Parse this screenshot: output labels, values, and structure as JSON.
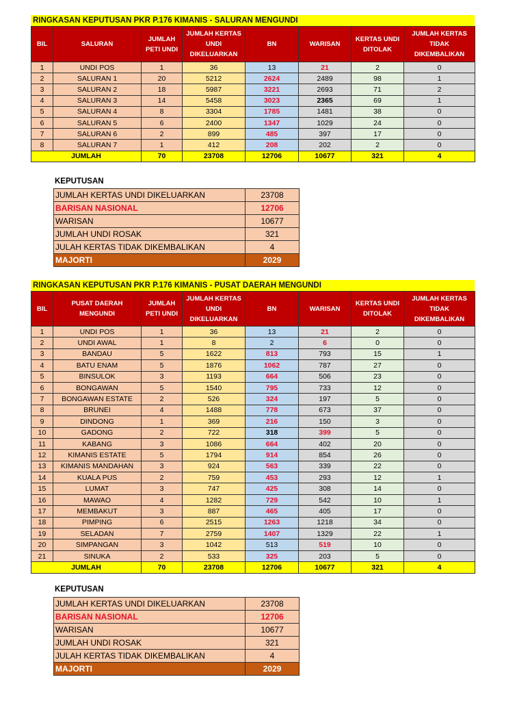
{
  "colors": {
    "header": "#c00000",
    "title": "#ffff00",
    "red_text": "#e3102a",
    "majority": "#c55a11"
  },
  "headers1": [
    "BIL",
    "SALURAN",
    "JUMLAH PETI UNDI",
    "JUMLAH KERTAS UNDI DIKELUARKAN",
    "BN",
    "WARISAN",
    "KERTAS UNDI DITOLAK",
    "JUMLAH KERTAS TIDAK DIKEMBALIKAN"
  ],
  "headers2": [
    "BIL",
    "PUSAT DAERAH MENGUNDI",
    "JUMLAH PETI UNDI",
    "JUMLAH KERTAS UNDI DIKELUARKAN",
    "BN",
    "WARISAN",
    "KERTAS UNDI DITOLAK",
    "JUMLAH KERTAS TIDAK DIKEMBALIKAN"
  ],
  "table1": {
    "title": "RINGKASAN KEPUTUSAN PKR P.176 KIMANIS - SALURAN MENGUNDI",
    "rows": [
      {
        "cells": [
          "1",
          "UNDI POS",
          "1",
          "36",
          "13",
          "21",
          "2",
          "0"
        ],
        "style": {
          "5": "r"
        }
      },
      {
        "cells": [
          "2",
          "SALURAN 1",
          "20",
          "5212",
          "2624",
          "2489",
          "98",
          "1"
        ],
        "style": {
          "4": "r"
        }
      },
      {
        "cells": [
          "3",
          "SALURAN 2",
          "18",
          "5987",
          "3221",
          "2693",
          "71",
          "2"
        ],
        "style": {
          "4": "r"
        }
      },
      {
        "cells": [
          "4",
          "SALURAN 3",
          "14",
          "5458",
          "3023",
          "2365",
          "69",
          "1"
        ],
        "style": {
          "4": "r",
          "5": "b"
        }
      },
      {
        "cells": [
          "5",
          "SALURAN 4",
          "8",
          "3304",
          "1785",
          "1481",
          "38",
          "0"
        ],
        "style": {
          "4": "r"
        }
      },
      {
        "cells": [
          "6",
          "SALURAN 5",
          "6",
          "2400",
          "1347",
          "1029",
          "24",
          "0"
        ],
        "style": {
          "4": "r"
        }
      },
      {
        "cells": [
          "7",
          "SALURAN 6",
          "2",
          "899",
          "485",
          "397",
          "17",
          "0"
        ],
        "style": {
          "4": "r"
        }
      },
      {
        "cells": [
          "8",
          "SALURAN 7",
          "1",
          "412",
          "208",
          "202",
          "2",
          "0"
        ],
        "style": {
          "4": "r"
        }
      }
    ],
    "total": [
      "JUMLAH",
      "70",
      "23708",
      "12706",
      "10677",
      "321",
      "4"
    ]
  },
  "table2": {
    "title": "RINGKASAN KEPUTUSAN PKR P.176 KIMANIS - PUSAT DAERAH MENGUNDI",
    "rows": [
      {
        "cells": [
          "1",
          "UNDI POS",
          "1",
          "36",
          "13",
          "21",
          "2",
          "0"
        ],
        "style": {
          "5": "r"
        }
      },
      {
        "cells": [
          "2",
          "UNDI AWAL",
          "1",
          "8",
          "2",
          "6",
          "0",
          "0"
        ],
        "style": {
          "5": "r"
        }
      },
      {
        "cells": [
          "3",
          "BANDAU",
          "5",
          "1622",
          "813",
          "793",
          "15",
          "1"
        ],
        "style": {
          "4": "r"
        }
      },
      {
        "cells": [
          "4",
          "BATU ENAM",
          "5",
          "1876",
          "1062",
          "787",
          "27",
          "0"
        ],
        "style": {
          "4": "r"
        }
      },
      {
        "cells": [
          "5",
          "BINSULOK",
          "3",
          "1193",
          "664",
          "506",
          "23",
          "0"
        ],
        "style": {
          "4": "r"
        }
      },
      {
        "cells": [
          "6",
          "BONGAWAN",
          "5",
          "1540",
          "795",
          "733",
          "12",
          "0"
        ],
        "style": {
          "4": "r"
        }
      },
      {
        "cells": [
          "7",
          "BONGAWAN ESTATE",
          "2",
          "526",
          "324",
          "197",
          "5",
          "0"
        ],
        "style": {
          "4": "r"
        }
      },
      {
        "cells": [
          "8",
          "BRUNEI",
          "4",
          "1488",
          "778",
          "673",
          "37",
          "0"
        ],
        "style": {
          "4": "r"
        }
      },
      {
        "cells": [
          "9",
          "DINDONG",
          "1",
          "369",
          "216",
          "150",
          "3",
          "0"
        ],
        "style": {
          "4": "r"
        }
      },
      {
        "cells": [
          "10",
          "GADONG",
          "2",
          "722",
          "318",
          "399",
          "5",
          "0"
        ],
        "style": {
          "4": "b",
          "5": "r"
        }
      },
      {
        "cells": [
          "11",
          "KABANG",
          "3",
          "1086",
          "664",
          "402",
          "20",
          "0"
        ],
        "style": {
          "4": "r"
        }
      },
      {
        "cells": [
          "12",
          "KIMANIS ESTATE",
          "5",
          "1794",
          "914",
          "854",
          "26",
          "0"
        ],
        "style": {
          "4": "r"
        }
      },
      {
        "cells": [
          "13",
          "KIMANIS MANDAHAN",
          "3",
          "924",
          "563",
          "339",
          "22",
          "0"
        ],
        "style": {
          "4": "r"
        }
      },
      {
        "cells": [
          "14",
          "KUALA PUS",
          "2",
          "759",
          "453",
          "293",
          "12",
          "1"
        ],
        "style": {
          "4": "r"
        }
      },
      {
        "cells": [
          "15",
          "LUMAT",
          "3",
          "747",
          "425",
          "308",
          "14",
          "0"
        ],
        "style": {
          "4": "r"
        }
      },
      {
        "cells": [
          "16",
          "MAWAO",
          "4",
          "1282",
          "729",
          "542",
          "10",
          "1"
        ],
        "style": {
          "4": "r"
        }
      },
      {
        "cells": [
          "17",
          "MEMBAKUT",
          "3",
          "887",
          "465",
          "405",
          "17",
          "0"
        ],
        "style": {
          "4": "r"
        }
      },
      {
        "cells": [
          "18",
          "PIMPING",
          "6",
          "2515",
          "1263",
          "1218",
          "34",
          "0"
        ],
        "style": {
          "4": "r"
        }
      },
      {
        "cells": [
          "19",
          "SELADAN",
          "7",
          "2759",
          "1407",
          "1329",
          "22",
          "1"
        ],
        "style": {
          "4": "r"
        }
      },
      {
        "cells": [
          "20",
          "SIMPANGAN",
          "3",
          "1042",
          "513",
          "519",
          "10",
          "0"
        ],
        "style": {
          "5": "r"
        }
      },
      {
        "cells": [
          "21",
          "SINUKA",
          "2",
          "533",
          "325",
          "203",
          "5",
          "0"
        ],
        "style": {
          "4": "r"
        }
      }
    ],
    "total": [
      "JUMLAH",
      "70",
      "23708",
      "12706",
      "10677",
      "321",
      "4"
    ]
  },
  "keputusan": {
    "title": "KEPUTUSAN",
    "rows": [
      {
        "label": "JUMLAH KERTAS UNDI DIKELUARKAN",
        "value": "23708"
      },
      {
        "label": "BARISAN NASIONAL",
        "value": "12706",
        "kind": "red"
      },
      {
        "label": "WARISAN",
        "value": "10677"
      },
      {
        "label": "JUMLAH UNDI ROSAK",
        "value": "321"
      },
      {
        "label": "JULAH KERTAS TIDAK DIKEMBALIKAN",
        "value": "4"
      },
      {
        "label": "MAJORTI",
        "value": "2029",
        "kind": "maj"
      }
    ]
  }
}
